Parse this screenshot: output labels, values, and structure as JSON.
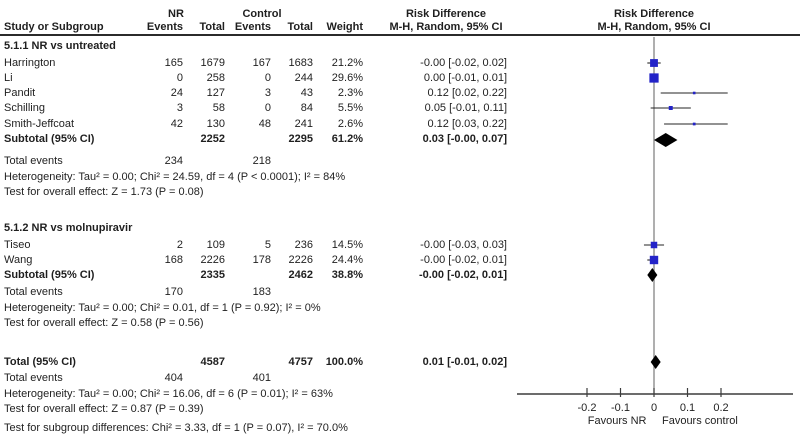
{
  "header": {
    "group1": "NR",
    "group2": "Control",
    "study": "Study or Subgroup",
    "events": "Events",
    "total": "Total",
    "weight": "Weight",
    "effect_title": "Risk Difference",
    "effect_sub": "M-H, Random, 95% CI",
    "plot_title": "Risk Difference",
    "plot_sub": "M-H, Random, 95% CI"
  },
  "groups": [
    {
      "title": "5.1.1 NR vs untreated",
      "studies": [
        {
          "name": "Harrington",
          "e1": "165",
          "t1": "1679",
          "e2": "167",
          "t2": "1683",
          "weight": "21.2%",
          "ci": "-0.00 [-0.02, 0.02]"
        },
        {
          "name": "Li",
          "e1": "0",
          "t1": "258",
          "e2": "0",
          "t2": "244",
          "weight": "29.6%",
          "ci": "0.00 [-0.01, 0.01]"
        },
        {
          "name": "Pandit",
          "e1": "24",
          "t1": "127",
          "e2": "3",
          "t2": "43",
          "weight": "2.3%",
          "ci": "0.12 [0.02, 0.22]"
        },
        {
          "name": "Schilling",
          "e1": "3",
          "t1": "58",
          "e2": "0",
          "t2": "84",
          "weight": "5.5%",
          "ci": "0.05 [-0.01, 0.11]"
        },
        {
          "name": "Smith-Jeffcoat",
          "e1": "42",
          "t1": "130",
          "e2": "48",
          "t2": "241",
          "weight": "2.6%",
          "ci": "0.12 [0.03, 0.22]"
        }
      ],
      "subtotal": {
        "label": "Subtotal (95% CI)",
        "t1": "2252",
        "t2": "2295",
        "weight": "61.2%",
        "ci": "0.03 [-0.00, 0.07]"
      },
      "total_events": {
        "label": "Total events",
        "e1": "234",
        "e2": "218"
      },
      "heterogeneity": "Heterogeneity: Tau² = 0.00; Chi² = 24.59, df = 4 (P < 0.0001); I² = 84%",
      "effect_test": "Test for overall effect: Z = 1.73 (P = 0.08)"
    },
    {
      "title": "5.1.2 NR vs molnupiravir",
      "studies": [
        {
          "name": "Tiseo",
          "e1": "2",
          "t1": "109",
          "e2": "5",
          "t2": "236",
          "weight": "14.5%",
          "ci": "-0.00 [-0.03, 0.03]"
        },
        {
          "name": "Wang",
          "e1": "168",
          "t1": "2226",
          "e2": "178",
          "t2": "2226",
          "weight": "24.4%",
          "ci": "-0.00 [-0.02, 0.01]"
        }
      ],
      "subtotal": {
        "label": "Subtotal (95% CI)",
        "t1": "2335",
        "t2": "2462",
        "weight": "38.8%",
        "ci": "-0.00 [-0.02, 0.01]"
      },
      "total_events": {
        "label": "Total events",
        "e1": "170",
        "e2": "183"
      },
      "heterogeneity": "Heterogeneity: Tau² = 0.00; Chi² = 0.01, df = 1 (P = 0.92); I² = 0%",
      "effect_test": "Test for overall effect: Z = 0.58 (P = 0.56)"
    }
  ],
  "total": {
    "label": "Total (95% CI)",
    "t1": "4587",
    "t2": "4757",
    "weight": "100.0%",
    "ci": "0.01 [-0.01, 0.02]",
    "events_label": "Total events",
    "e1": "404",
    "e2": "401",
    "heterogeneity": "Heterogeneity: Tau² = 0.00; Chi² = 16.06, df = 6 (P = 0.01); I² = 63%",
    "effect_test": "Test for overall effect: Z = 0.87 (P = 0.39)",
    "subgroup_test": "Test for subgroup differences: Chi² = 3.33, df = 1 (P = 0.07), I² = 70.0%"
  },
  "chart_data": {
    "type": "forest",
    "effect_measure": "Risk Difference, M-H, Random, 95% CI",
    "x_axis": {
      "min": -0.25,
      "max": 0.25,
      "ticks": [
        {
          "v": -0.2,
          "label": "-0.2"
        },
        {
          "v": -0.1,
          "label": "-0.1"
        },
        {
          "v": 0,
          "label": "0"
        },
        {
          "v": 0.1,
          "label": "0.1"
        },
        {
          "v": 0.2,
          "label": "0.2"
        }
      ],
      "favours_left": "Favours NR",
      "favours_right": "Favours control"
    },
    "studies": [
      {
        "name": "Harrington",
        "group": "5.1.1 NR vs untreated",
        "rd": -0.0,
        "lo": -0.02,
        "hi": 0.02,
        "weight_pct": 21.2
      },
      {
        "name": "Li",
        "group": "5.1.1 NR vs untreated",
        "rd": 0.0,
        "lo": -0.01,
        "hi": 0.01,
        "weight_pct": 29.6
      },
      {
        "name": "Pandit",
        "group": "5.1.1 NR vs untreated",
        "rd": 0.12,
        "lo": 0.02,
        "hi": 0.22,
        "weight_pct": 2.3
      },
      {
        "name": "Schilling",
        "group": "5.1.1 NR vs untreated",
        "rd": 0.05,
        "lo": -0.01,
        "hi": 0.11,
        "weight_pct": 5.5
      },
      {
        "name": "Smith-Jeffcoat",
        "group": "5.1.1 NR vs untreated",
        "rd": 0.12,
        "lo": 0.03,
        "hi": 0.22,
        "weight_pct": 2.6
      },
      {
        "name": "Tiseo",
        "group": "5.1.2 NR vs molnupiravir",
        "rd": -0.0,
        "lo": -0.03,
        "hi": 0.03,
        "weight_pct": 14.5
      },
      {
        "name": "Wang",
        "group": "5.1.2 NR vs molnupiravir",
        "rd": -0.0,
        "lo": -0.02,
        "hi": 0.01,
        "weight_pct": 24.4
      }
    ],
    "summaries": [
      {
        "name": "Subtotal 5.1.1",
        "rd": 0.03,
        "lo": -0.0,
        "hi": 0.07
      },
      {
        "name": "Subtotal 5.1.2",
        "rd": -0.0,
        "lo": -0.02,
        "hi": 0.01
      },
      {
        "name": "Total",
        "rd": 0.01,
        "lo": -0.01,
        "hi": 0.02
      }
    ],
    "colors": {
      "square": "#2323c8",
      "diamond": "#000000",
      "zero_line": "#7a7a7a",
      "axis": "#3c3c3c",
      "whisker": "#262626"
    }
  }
}
